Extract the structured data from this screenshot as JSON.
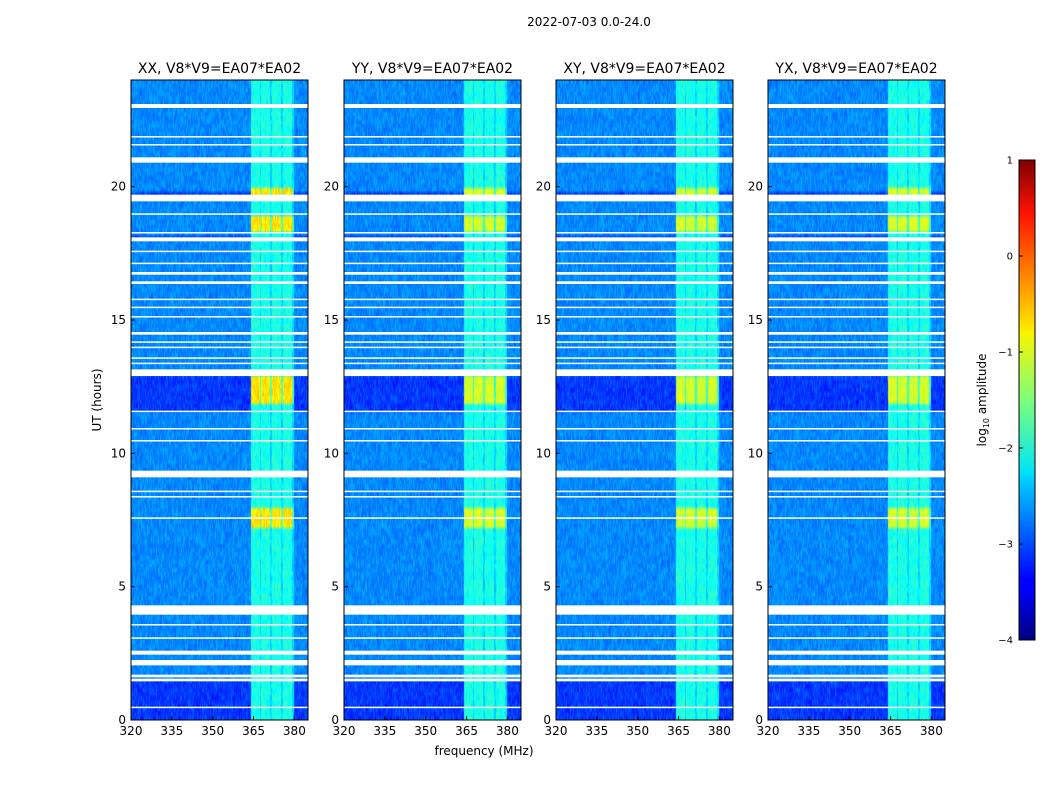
{
  "figure": {
    "suptitle": "2022-07-03 0.0-24.0",
    "xlabel": "frequency (MHz)",
    "ylabel": "UT (hours)"
  },
  "chart_data": {
    "type": "heatmap",
    "title": "2022-07-03 0.0-24.0",
    "xlabel": "frequency (MHz)",
    "ylabel": "UT (hours)",
    "xlim": [
      320,
      385
    ],
    "ylim": [
      0,
      24
    ],
    "xticks": [
      320,
      335,
      350,
      365,
      380
    ],
    "yticks": [
      0,
      5,
      10,
      15,
      20
    ],
    "panels": [
      {
        "title": "XX, V8*V9=EA07*EA02",
        "rfi_strength": 1.0
      },
      {
        "title": "YY, V8*V9=EA07*EA02",
        "rfi_strength": 0.75
      },
      {
        "title": "XY, V8*V9=EA07*EA02",
        "rfi_strength": 0.72
      },
      {
        "title": "YX, V8*V9=EA07*EA02",
        "rfi_strength": 0.74
      }
    ],
    "rfi_band_mhz": [
      364,
      380
    ],
    "rfi_channels_mhz": [
      365.5,
      369.5,
      373.5,
      377.5
    ],
    "flagged_gaps_ut": [
      [
        0.45,
        0.5
      ],
      [
        1.45,
        1.55
      ],
      [
        1.6,
        1.7
      ],
      [
        2.05,
        2.25
      ],
      [
        2.45,
        2.6
      ],
      [
        3.05,
        3.1
      ],
      [
        3.55,
        3.6
      ],
      [
        3.95,
        4.3
      ],
      [
        7.55,
        7.6
      ],
      [
        8.35,
        8.4
      ],
      [
        8.55,
        8.6
      ],
      [
        9.1,
        9.35
      ],
      [
        10.45,
        10.5
      ],
      [
        10.9,
        10.95
      ],
      [
        11.55,
        11.6
      ],
      [
        12.9,
        13.15
      ],
      [
        13.35,
        13.4
      ],
      [
        13.55,
        13.6
      ],
      [
        13.95,
        14.0
      ],
      [
        14.15,
        14.2
      ],
      [
        14.45,
        14.55
      ],
      [
        15.1,
        15.15
      ],
      [
        15.45,
        15.5
      ],
      [
        15.75,
        15.8
      ],
      [
        16.35,
        16.45
      ],
      [
        16.7,
        16.8
      ],
      [
        17.1,
        17.15
      ],
      [
        17.55,
        17.6
      ],
      [
        17.95,
        18.1
      ],
      [
        18.25,
        18.3
      ],
      [
        18.95,
        19.0
      ],
      [
        19.45,
        19.7
      ],
      [
        20.9,
        21.1
      ],
      [
        21.55,
        21.6
      ],
      [
        21.85,
        21.9
      ],
      [
        22.95,
        23.1
      ]
    ],
    "bright_bursts_ut": [
      [
        11.8,
        12.9
      ],
      [
        7.2,
        8.0
      ],
      [
        18.3,
        18.9
      ],
      [
        19.7,
        20.0
      ]
    ],
    "colorbar": {
      "label": "log10 amplitude",
      "label_prefix": "log",
      "label_sub": "10",
      "label_suffix": " amplitude",
      "range": [
        -4,
        1
      ],
      "ticks": [
        "1",
        "0",
        "−1",
        "−2",
        "−3",
        "−4"
      ],
      "colormap": "jet"
    }
  }
}
